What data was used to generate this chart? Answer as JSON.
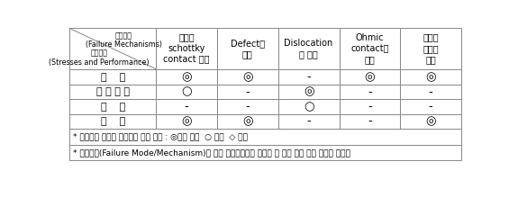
{
  "title_top_right": "고장기구\n(Failure Mechanisms)",
  "title_bottom_left": "고장원인\n(Stresses and Performance)",
  "col_headers": [
    "게이트\nschottky\ncontact 열화",
    "Defect의\n증가",
    "Dislocation\n의 성장",
    "Ohmic\ncontact의\n열화",
    "반도체\n소재의\n열화"
  ],
  "row_headers": [
    "온    도",
    "온 도 변 화",
    "진    동",
    "전    압"
  ],
  "cells": [
    [
      "◎",
      "◎",
      "-",
      "◎",
      "◎"
    ],
    [
      "○",
      "-",
      "◎",
      "-",
      "-"
    ],
    [
      "-",
      "-",
      "○",
      "-",
      "-"
    ],
    [
      "◎",
      "◎",
      "-",
      "-",
      "◎"
    ]
  ],
  "footnotes": [
    "* 신뢰성에 관련된 중요도에 따라 표시 : ◎가장 중요  ○ 중요  ◇ 보통",
    "* 고장기구(Failure Mode/Mechanism)는 해당 부품소재에서 발생할 수 있는 모든 고장 형태를 나타냄"
  ],
  "border_color": "#888888",
  "font_size_header": 7.0,
  "font_size_cell": 8.0,
  "font_size_footnote": 6.5
}
